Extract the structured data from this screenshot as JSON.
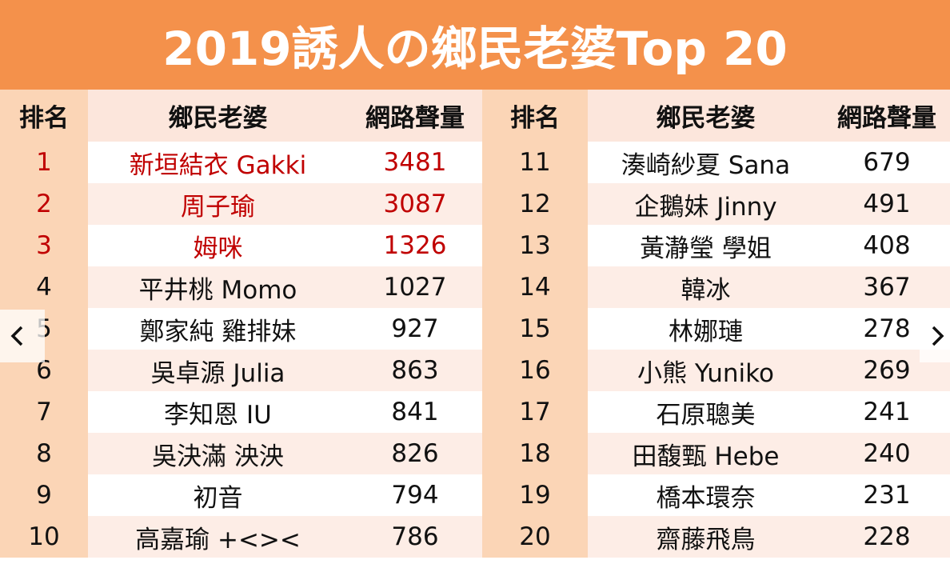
{
  "header": {
    "title": "2019誘人の鄉民老婆Top 20"
  },
  "table": {
    "columns": [
      "排名",
      "鄉民老婆",
      "網路聲量",
      "排名",
      "鄉民老婆",
      "網路聲量"
    ],
    "rows": [
      [
        1,
        "新垣結衣 Gakki",
        3481,
        11,
        "湊崎紗夏 Sana",
        679
      ],
      [
        2,
        "周子瑜",
        3087,
        12,
        "企鵝妹 Jinny",
        491
      ],
      [
        3,
        "姆咪",
        1326,
        13,
        "黃瀞瑩 學姐",
        408
      ],
      [
        4,
        "平井桃 Momo",
        1027,
        14,
        "韓冰",
        367
      ],
      [
        5,
        "鄭家純 雞排妹",
        927,
        15,
        "林娜璉",
        278
      ],
      [
        6,
        "吳卓源 Julia",
        863,
        16,
        "小熊 Yuniko",
        269
      ],
      [
        7,
        "李知恩 IU",
        841,
        17,
        "石原聰美",
        241
      ],
      [
        8,
        "吳決滿 泱泱",
        826,
        18,
        "田馥甄 Hebe",
        240
      ],
      [
        9,
        "初音",
        794,
        19,
        "橋本環奈",
        231
      ],
      [
        10,
        "高嘉瑜 +<><",
        786,
        20,
        "齋藤飛鳥",
        228
      ]
    ]
  }
}
